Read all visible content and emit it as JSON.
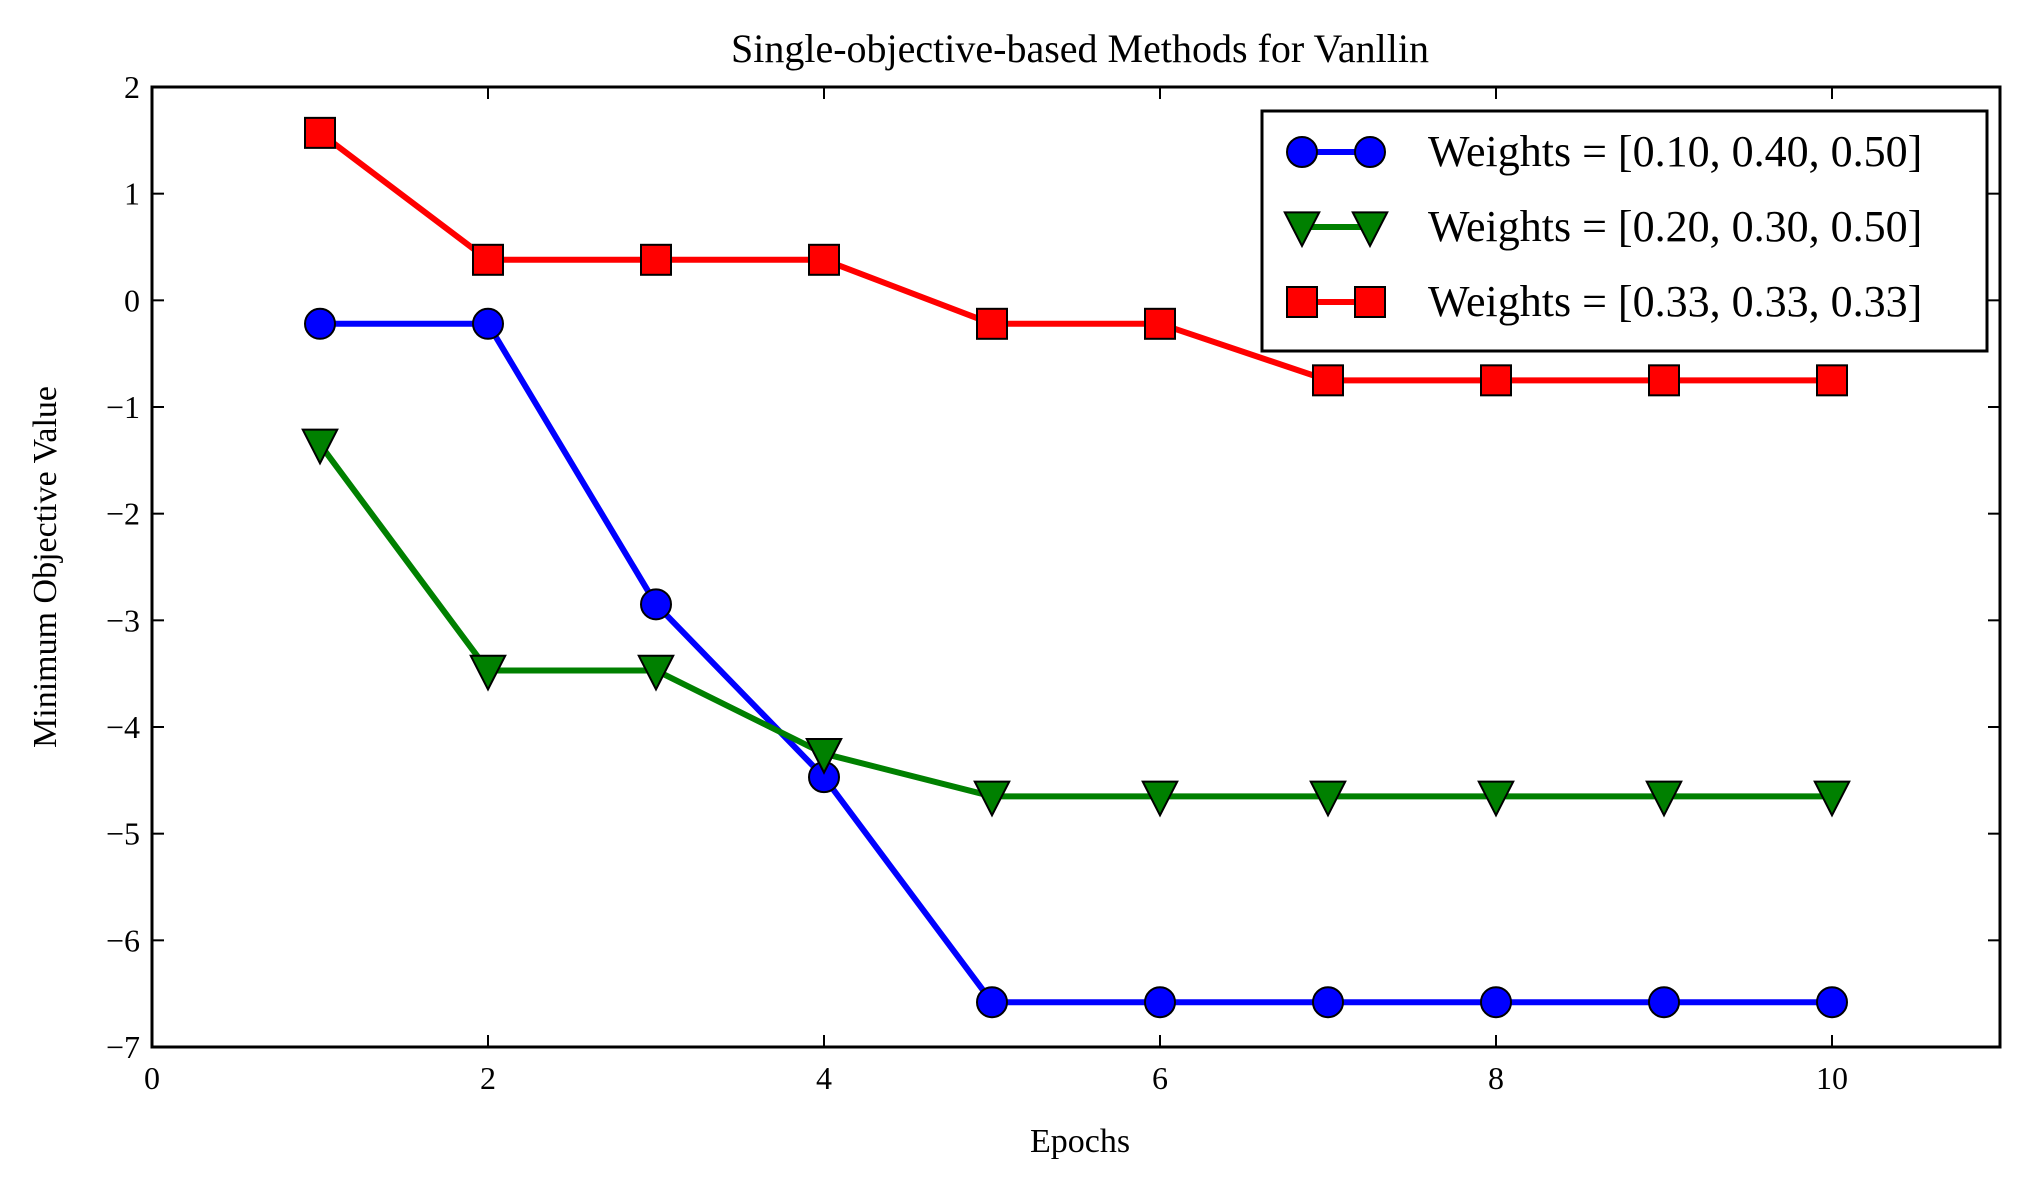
{
  "chart_data": {
    "type": "line",
    "title": "Single-objective-based Methods for Vanllin",
    "xlabel": "Epochs",
    "ylabel": "Minimum Objective Value",
    "xlim": [
      0,
      11
    ],
    "ylim": [
      -7,
      2
    ],
    "x_ticks": [
      0,
      2,
      4,
      6,
      8,
      10
    ],
    "y_ticks": [
      2,
      1,
      0,
      -1,
      -2,
      -3,
      -4,
      -5,
      -6,
      -7
    ],
    "x_tick_labels": [
      "0",
      "2",
      "4",
      "6",
      "8",
      "10"
    ],
    "y_tick_labels": [
      "2",
      "1",
      "0",
      "−1",
      "−2",
      "−3",
      "−4",
      "−5",
      "−6",
      "−7"
    ],
    "grid": false,
    "legend_position": "top-right",
    "x": [
      1,
      2,
      3,
      4,
      5,
      6,
      7,
      8,
      9,
      10
    ],
    "series": [
      {
        "name": "Weights = [0.10, 0.40, 0.50]",
        "color": "#0000ff",
        "marker": "circle",
        "values": [
          -0.22,
          -0.22,
          -2.85,
          -4.47,
          -6.58,
          -6.58,
          -6.58,
          -6.58,
          -6.58,
          -6.58
        ]
      },
      {
        "name": "Weights = [0.20, 0.30, 0.50]",
        "color": "#008000",
        "marker": "triangle-down",
        "values": [
          -1.35,
          -3.47,
          -3.47,
          -4.25,
          -4.65,
          -4.65,
          -4.65,
          -4.65,
          -4.65,
          -4.65
        ]
      },
      {
        "name": "Weights = [0.33, 0.33, 0.33]",
        "color": "#ff0000",
        "marker": "square",
        "values": [
          1.57,
          0.38,
          0.38,
          0.38,
          -0.22,
          -0.22,
          -0.75,
          -0.75,
          -0.75,
          -0.75
        ]
      }
    ]
  }
}
